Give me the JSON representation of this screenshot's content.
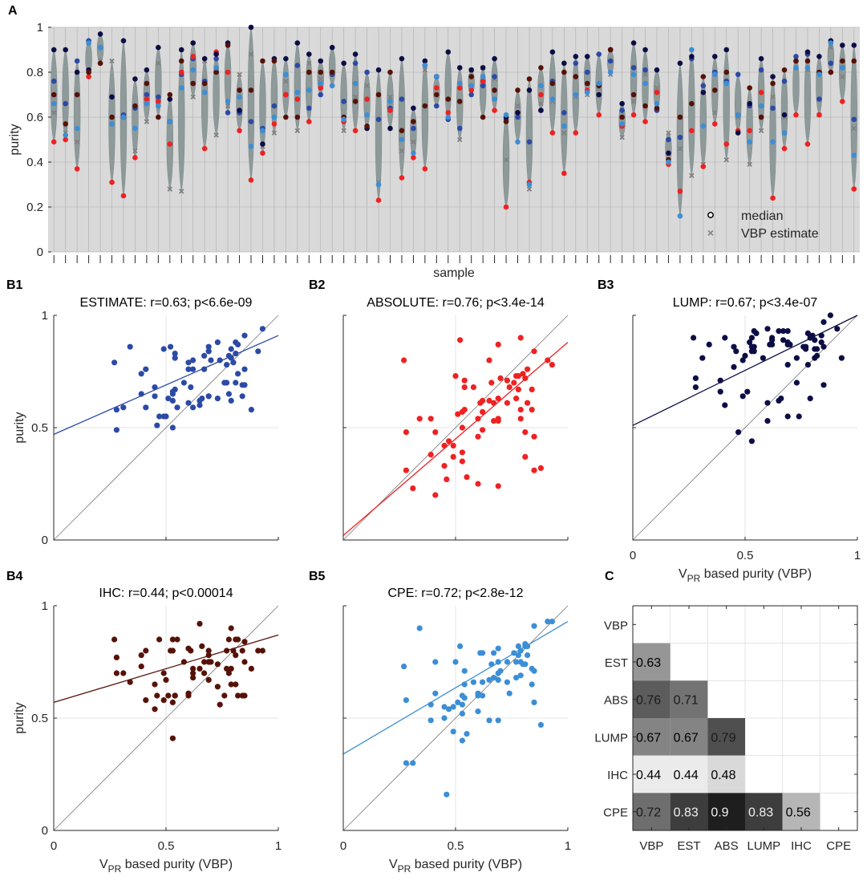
{
  "panel_labels": {
    "a": "A",
    "b1": "B1",
    "b2": "B2",
    "b3": "B3",
    "b4": "B4",
    "b5": "B5",
    "c": "C"
  },
  "colors": {
    "violin": "#8e9a9a",
    "panel_bg": "#d9d9d9",
    "ESTIMATE": "#2c4aa5",
    "ABSOLUTE": "#ee2222",
    "LUMP": "#0d0d45",
    "IHC": "#561208",
    "CPE": "#3c8ed5",
    "vbp_marker": "#808080"
  },
  "legend": {
    "median": "median",
    "vbp": "VBP estimate"
  },
  "chart_data": [
    {
      "id": "A",
      "type": "scatter",
      "title": "",
      "xlabel": "sample",
      "ylabel": "purity",
      "ylim": [
        0,
        1
      ],
      "yticks": [
        0,
        0.2,
        0.4,
        0.6,
        0.8,
        1
      ],
      "n_samples": 70,
      "vbp_estimate": [
        0.62,
        0.53,
        0.49,
        0.93,
        0.85,
        0.85,
        0.6,
        0.45,
        0.58,
        0.84,
        0.28,
        0.27,
        0.69,
        0.85,
        0.52,
        0.65,
        0.79,
        0.88,
        0.47,
        0.53,
        0.76,
        0.54,
        0.84,
        0.77,
        0.8,
        0.54,
        0.69,
        0.74,
        0.31,
        0.69,
        0.45,
        0.49,
        0.81,
        0.78,
        0.62,
        0.5,
        0.81,
        0.82,
        0.77,
        0.41,
        0.65,
        0.28,
        0.66,
        0.67,
        0.53,
        0.69,
        0.7,
        0.73,
        0.79,
        0.51,
        0.67,
        0.79,
        0.73,
        0.53,
        0.46,
        0.34,
        0.39,
        0.62,
        0.41,
        0.6,
        0.39,
        0.54,
        0.69,
        0.6,
        0.82,
        0.81,
        0.61,
        0.91,
        0.78,
        0.55
      ],
      "series": [
        {
          "name": "ESTIMATE",
          "values": [
            0.76,
            0.66,
            0.85,
            0.94,
            0.91,
            0.69,
            0.61,
            0.64,
            0.7,
            0.69,
            0.58,
            0.79,
            0.86,
            0.76,
            0.86,
            0.62,
            0.62,
            0.58,
            0.55,
            0.65,
            0.7,
            0.83,
            0.64,
            0.7,
            0.79,
            0.67,
            0.84,
            0.8,
            0.59,
            0.64,
            0.68,
            0.55,
            0.83,
            0.65,
            0.59,
            0.55,
            0.7,
            0.74,
            0.78,
            0.59,
            0.6,
            0.49,
            0.63,
            0.76,
            0.62,
            0.84,
            0.8,
            0.88,
            0.85,
            0.63,
            0.82,
            0.81,
            0.63,
            0.5,
            0.51,
            0.86,
            0.74,
            0.8,
            0.76,
            0.79,
            0.65,
            0.81,
            0.64,
            0.76,
            0.87,
            0.88,
            0.68,
            0.84,
            0.82,
            0.59
          ]
        },
        {
          "name": "ABSOLUTE",
          "values": [
            0.49,
            0.5,
            0.37,
            0.78,
            0.84,
            0.31,
            0.25,
            0.42,
            0.68,
            0.67,
            0.48,
            0.8,
            0.87,
            0.46,
            0.89,
            0.8,
            0.54,
            0.32,
            0.44,
            0.57,
            0.7,
            0.68,
            0.58,
            0.73,
            0.74,
            0.58,
            0.54,
            0.68,
            0.23,
            0.63,
            0.33,
            0.42,
            0.37,
            0.73,
            0.62,
            0.73,
            0.72,
            0.76,
            0.63,
            0.2,
            0.62,
            0.31,
            0.7,
            0.53,
            0.35,
            0.53,
            0.72,
            0.61,
            0.9,
            0.56,
            0.61,
            0.58,
            0.71,
            0.39,
            0.27,
            0.54,
            0.38,
            0.57,
            0.48,
            0.54,
            0.54,
            0.71,
            0.24,
            0.46,
            0.61,
            0.48,
            0.61,
            0.8,
            0.67,
            0.28
          ]
        },
        {
          "name": "LUMP",
          "values": [
            0.9,
            0.9,
            0.8,
            0.81,
            0.97,
            0.69,
            0.94,
            0.77,
            0.81,
            0.91,
            0.68,
            0.9,
            0.93,
            0.86,
            0.88,
            0.93,
            0.63,
            1.0,
            0.48,
            0.86,
            0.86,
            0.93,
            0.88,
            0.85,
            0.91,
            0.84,
            0.88,
            0.55,
            0.81,
            0.55,
            0.86,
            0.64,
            0.85,
            0.78,
            0.89,
            0.82,
            0.81,
            0.82,
            0.86,
            0.6,
            0.62,
            0.72,
            0.63,
            0.89,
            0.84,
            0.87,
            0.87,
            0.7,
            0.9,
            0.66,
            0.93,
            0.9,
            0.81,
            0.44,
            0.84,
            0.87,
            0.71,
            0.87,
            0.9,
            0.53,
            0.66,
            0.86,
            0.78,
            0.61,
            0.85,
            0.89,
            0.87,
            0.94,
            0.92,
            0.92
          ]
        },
        {
          "name": "IHC",
          "values": [
            0.7,
            0.57,
            0.7,
            0.8,
            0.84,
            0.6,
            0.6,
            0.65,
            0.75,
            0.6,
            0.7,
            0.85,
            0.75,
            0.75,
            0.8,
            0.92,
            0.72,
            0.72,
            0.85,
            0.85,
            0.6,
            0.6,
            0.8,
            0.8,
            0.8,
            0.6,
            0.67,
            0.56,
            0.7,
            0.8,
            0.54,
            0.58,
            0.65,
            0.7,
            0.68,
            0.67,
            0.78,
            0.6,
            0.72,
            0.58,
            0.72,
            0.77,
            0.82,
            0.75,
            0.8,
            0.78,
            0.75,
            0.74,
            0.9,
            0.6,
            0.7,
            0.65,
            0.64,
            0.41,
            0.6,
            0.66,
            0.78,
            0.72,
            0.8,
            0.61,
            0.73,
            0.6,
            0.75,
            0.81,
            0.85,
            0.85,
            0.8,
            0.8,
            0.85,
            0.85
          ]
        },
        {
          "name": "CPE",
          "values": [
            0.66,
            0.52,
            0.55,
            0.93,
            0.91,
            0.57,
            0.6,
            0.55,
            0.66,
            0.65,
            0.58,
            0.73,
            0.81,
            0.71,
            0.82,
            0.67,
            0.69,
            0.47,
            0.54,
            0.6,
            0.79,
            0.71,
            0.72,
            0.75,
            0.74,
            0.59,
            0.75,
            0.61,
            0.3,
            0.67,
            0.5,
            0.44,
            0.83,
            0.78,
            0.6,
            0.75,
            0.74,
            0.78,
            0.68,
            0.61,
            0.49,
            0.3,
            0.74,
            0.68,
            0.56,
            0.7,
            0.71,
            0.75,
            0.8,
            0.57,
            0.79,
            0.75,
            0.66,
            0.4,
            0.16,
            0.9,
            0.56,
            0.79,
            0.75,
            0.61,
            0.49,
            0.65,
            0.49,
            0.53,
            0.82,
            0.82,
            0.79,
            0.93,
            0.82,
            0.43
          ]
        }
      ],
      "legend": [
        "median",
        "VBP estimate"
      ]
    },
    {
      "id": "B1",
      "type": "scatter",
      "title": "ESTIMATE: r=0.63; p<6.6e-09",
      "xlabel": "",
      "ylabel": "purity",
      "xlim": [
        0,
        1
      ],
      "ylim": [
        0,
        1
      ],
      "xticks": [],
      "yticks": [
        "0",
        "0.5",
        "1"
      ],
      "fit": {
        "intercept": 0.47,
        "slope": 0.44
      },
      "color_key": "ESTIMATE",
      "series_ref": "ESTIMATE"
    },
    {
      "id": "B2",
      "type": "scatter",
      "title": "ABSOLUTE: r=0.76; p<3.4e-14",
      "xlabel": "",
      "ylabel": "",
      "xlim": [
        0,
        1
      ],
      "ylim": [
        0,
        1
      ],
      "xticks": [],
      "yticks": [],
      "fit": {
        "intercept": 0.02,
        "slope": 0.86
      },
      "color_key": "ABSOLUTE",
      "series_ref": "ABSOLUTE"
    },
    {
      "id": "B3",
      "type": "scatter",
      "title": "LUMP: r=0.67; p<3.4e-07",
      "xlabel_main": "V",
      "xlabel_sub": "PR",
      "xlabel_rest": " based purity (VBP)",
      "ylabel": "",
      "xlim": [
        0,
        1
      ],
      "ylim": [
        0,
        1
      ],
      "xticks": [
        "0",
        "0.5",
        "1"
      ],
      "yticks": [],
      "fit": {
        "intercept": 0.51,
        "slope": 0.49
      },
      "color_key": "LUMP",
      "series_ref": "LUMP"
    },
    {
      "id": "B4",
      "type": "scatter",
      "title": "IHC: r=0.44; p<0.00014",
      "xlabel_main": "V",
      "xlabel_sub": "PR",
      "xlabel_rest": " based purity (VBP)",
      "ylabel": "purity",
      "xlim": [
        0,
        1
      ],
      "ylim": [
        0,
        1
      ],
      "xticks": [
        "0",
        "0.5",
        "1"
      ],
      "yticks": [
        "0",
        "0.5",
        "1"
      ],
      "fit": {
        "intercept": 0.57,
        "slope": 0.3
      },
      "color_key": "IHC",
      "series_ref": "IHC"
    },
    {
      "id": "B5",
      "type": "scatter",
      "title": "CPE: r=0.72; p<2.8e-12",
      "xlabel_main": "V",
      "xlabel_sub": "PR",
      "xlabel_rest": " based purity (VBP)",
      "ylabel": "",
      "xlim": [
        0,
        1
      ],
      "ylim": [
        0,
        1
      ],
      "xticks": [
        "0",
        "0.5",
        "1"
      ],
      "yticks": [],
      "fit": {
        "intercept": 0.34,
        "slope": 0.59
      },
      "color_key": "CPE",
      "series_ref": "CPE"
    },
    {
      "id": "C",
      "type": "heatmap",
      "title": "",
      "row_labels": [
        "VBP",
        "EST",
        "ABS",
        "LUMP",
        "IHC",
        "CPE"
      ],
      "col_labels": [
        "VBP",
        "EST",
        "ABS",
        "LUMP",
        "IHC",
        "CPE"
      ],
      "cells": [
        {
          "row": 1,
          "col": 0,
          "value": 0.63,
          "label": "0.63"
        },
        {
          "row": 2,
          "col": 0,
          "value": 0.76,
          "label": "0.76"
        },
        {
          "row": 2,
          "col": 1,
          "value": 0.71,
          "label": "0.71"
        },
        {
          "row": 3,
          "col": 0,
          "value": 0.67,
          "label": "0.67"
        },
        {
          "row": 3,
          "col": 1,
          "value": 0.67,
          "label": "0.67"
        },
        {
          "row": 3,
          "col": 2,
          "value": 0.79,
          "label": "0.79"
        },
        {
          "row": 4,
          "col": 0,
          "value": 0.44,
          "label": "0.44"
        },
        {
          "row": 4,
          "col": 1,
          "value": 0.44,
          "label": "0.44"
        },
        {
          "row": 4,
          "col": 2,
          "value": 0.48,
          "label": "0.48"
        },
        {
          "row": 5,
          "col": 0,
          "value": 0.72,
          "label": "0.72"
        },
        {
          "row": 5,
          "col": 1,
          "value": 0.83,
          "label": "0.83"
        },
        {
          "row": 5,
          "col": 2,
          "value": 0.9,
          "label": "0.9"
        },
        {
          "row": 5,
          "col": 3,
          "value": 0.83,
          "label": "0.83"
        },
        {
          "row": 5,
          "col": 4,
          "value": 0.56,
          "label": "0.56"
        }
      ]
    }
  ]
}
